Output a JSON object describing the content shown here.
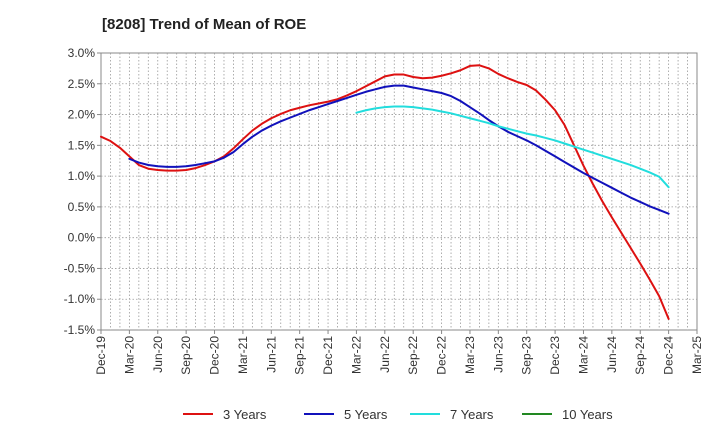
{
  "chart_data": {
    "type": "line",
    "title": "[8208]  Trend of Mean of ROE",
    "xlabel": "",
    "ylabel": "",
    "x_ticks": [
      "Dec-19",
      "Mar-20",
      "Jun-20",
      "Sep-20",
      "Dec-20",
      "Mar-21",
      "Jun-21",
      "Sep-21",
      "Dec-21",
      "Mar-22",
      "Jun-22",
      "Sep-22",
      "Dec-22",
      "Mar-23",
      "Jun-23",
      "Sep-23",
      "Dec-23",
      "Mar-24",
      "Jun-24",
      "Sep-24",
      "Dec-24",
      "Mar-25"
    ],
    "y_ticks": [
      "3.0%",
      "2.5%",
      "2.0%",
      "1.5%",
      "1.0%",
      "0.5%",
      "0.0%",
      "-0.5%",
      "-1.0%",
      "-1.5%"
    ],
    "ylim": [
      -1.5,
      3.0
    ],
    "grid": true,
    "legend_position": "bottom",
    "series": [
      {
        "name": "3 Years",
        "color": "#dd1111",
        "points": [
          [
            "Dec-19",
            1.64
          ],
          [
            "Jan-20",
            1.57
          ],
          [
            "Feb-20",
            1.46
          ],
          [
            "Mar-20",
            1.32
          ],
          [
            "Apr-20",
            1.18
          ],
          [
            "May-20",
            1.12
          ],
          [
            "Jun-20",
            1.1
          ],
          [
            "Jul-20",
            1.09
          ],
          [
            "Aug-20",
            1.09
          ],
          [
            "Sep-20",
            1.1
          ],
          [
            "Oct-20",
            1.13
          ],
          [
            "Nov-20",
            1.18
          ],
          [
            "Dec-20",
            1.24
          ],
          [
            "Jan-21",
            1.32
          ],
          [
            "Feb-21",
            1.45
          ],
          [
            "Mar-21",
            1.6
          ],
          [
            "Apr-21",
            1.74
          ],
          [
            "May-21",
            1.85
          ],
          [
            "Jun-21",
            1.94
          ],
          [
            "Jul-21",
            2.01
          ],
          [
            "Aug-21",
            2.07
          ],
          [
            "Sep-21",
            2.11
          ],
          [
            "Oct-21",
            2.15
          ],
          [
            "Nov-21",
            2.18
          ],
          [
            "Dec-21",
            2.21
          ],
          [
            "Jan-22",
            2.25
          ],
          [
            "Feb-22",
            2.31
          ],
          [
            "Mar-22",
            2.38
          ],
          [
            "Apr-22",
            2.46
          ],
          [
            "May-22",
            2.54
          ],
          [
            "Jun-22",
            2.62
          ],
          [
            "Jul-22",
            2.65
          ],
          [
            "Aug-22",
            2.65
          ],
          [
            "Sep-22",
            2.61
          ],
          [
            "Oct-22",
            2.59
          ],
          [
            "Nov-22",
            2.6
          ],
          [
            "Dec-22",
            2.63
          ],
          [
            "Jan-23",
            2.67
          ],
          [
            "Feb-23",
            2.72
          ],
          [
            "Mar-23",
            2.79
          ],
          [
            "Apr-23",
            2.8
          ],
          [
            "May-23",
            2.75
          ],
          [
            "Jun-23",
            2.66
          ],
          [
            "Jul-23",
            2.59
          ],
          [
            "Aug-23",
            2.53
          ],
          [
            "Sep-23",
            2.48
          ],
          [
            "Oct-23",
            2.39
          ],
          [
            "Nov-23",
            2.24
          ],
          [
            "Dec-23",
            2.07
          ],
          [
            "Jan-24",
            1.83
          ],
          [
            "Feb-24",
            1.5
          ],
          [
            "Mar-24",
            1.17
          ],
          [
            "Apr-24",
            0.87
          ],
          [
            "May-24",
            0.59
          ],
          [
            "Jun-24",
            0.33
          ],
          [
            "Jul-24",
            0.08
          ],
          [
            "Aug-24",
            -0.17
          ],
          [
            "Sep-24",
            -0.42
          ],
          [
            "Oct-24",
            -0.68
          ],
          [
            "Nov-24",
            -0.95
          ],
          [
            "Dec-24",
            -1.32
          ]
        ]
      },
      {
        "name": "5 Years",
        "color": "#1111bb",
        "points": [
          [
            "Mar-20",
            1.28
          ],
          [
            "Apr-20",
            1.22
          ],
          [
            "May-20",
            1.18
          ],
          [
            "Jun-20",
            1.16
          ],
          [
            "Jul-20",
            1.15
          ],
          [
            "Aug-20",
            1.15
          ],
          [
            "Sep-20",
            1.16
          ],
          [
            "Oct-20",
            1.18
          ],
          [
            "Nov-20",
            1.21
          ],
          [
            "Dec-20",
            1.24
          ],
          [
            "Jan-21",
            1.3
          ],
          [
            "Feb-21",
            1.39
          ],
          [
            "Mar-21",
            1.52
          ],
          [
            "Apr-21",
            1.64
          ],
          [
            "May-21",
            1.74
          ],
          [
            "Jun-21",
            1.82
          ],
          [
            "Jul-21",
            1.89
          ],
          [
            "Aug-21",
            1.95
          ],
          [
            "Sep-21",
            2.01
          ],
          [
            "Oct-21",
            2.07
          ],
          [
            "Nov-21",
            2.12
          ],
          [
            "Dec-21",
            2.17
          ],
          [
            "Jan-22",
            2.22
          ],
          [
            "Feb-22",
            2.27
          ],
          [
            "Mar-22",
            2.32
          ],
          [
            "Apr-22",
            2.37
          ],
          [
            "May-22",
            2.41
          ],
          [
            "Jun-22",
            2.45
          ],
          [
            "Jul-22",
            2.47
          ],
          [
            "Aug-22",
            2.47
          ],
          [
            "Sep-22",
            2.44
          ],
          [
            "Oct-22",
            2.41
          ],
          [
            "Nov-22",
            2.38
          ],
          [
            "Dec-22",
            2.35
          ],
          [
            "Jan-23",
            2.3
          ],
          [
            "Feb-23",
            2.22
          ],
          [
            "Mar-23",
            2.12
          ],
          [
            "Apr-23",
            2.02
          ],
          [
            "May-23",
            1.91
          ],
          [
            "Jun-23",
            1.81
          ],
          [
            "Jul-23",
            1.72
          ],
          [
            "Aug-23",
            1.65
          ],
          [
            "Sep-23",
            1.58
          ],
          [
            "Oct-23",
            1.5
          ],
          [
            "Nov-23",
            1.41
          ],
          [
            "Dec-23",
            1.32
          ],
          [
            "Jan-24",
            1.23
          ],
          [
            "Feb-24",
            1.14
          ],
          [
            "Mar-24",
            1.05
          ],
          [
            "Apr-24",
            0.97
          ],
          [
            "May-24",
            0.89
          ],
          [
            "Jun-24",
            0.81
          ],
          [
            "Jul-24",
            0.73
          ],
          [
            "Aug-24",
            0.65
          ],
          [
            "Sep-24",
            0.58
          ],
          [
            "Oct-24",
            0.51
          ],
          [
            "Nov-24",
            0.45
          ],
          [
            "Dec-24",
            0.39
          ]
        ]
      },
      {
        "name": "7 Years",
        "color": "#22dddd",
        "points": [
          [
            "Mar-22",
            2.03
          ],
          [
            "Apr-22",
            2.07
          ],
          [
            "May-22",
            2.1
          ],
          [
            "Jun-22",
            2.12
          ],
          [
            "Jul-22",
            2.13
          ],
          [
            "Aug-22",
            2.13
          ],
          [
            "Sep-22",
            2.12
          ],
          [
            "Oct-22",
            2.1
          ],
          [
            "Nov-22",
            2.08
          ],
          [
            "Dec-22",
            2.05
          ],
          [
            "Jan-23",
            2.02
          ],
          [
            "Feb-23",
            1.98
          ],
          [
            "Mar-23",
            1.94
          ],
          [
            "Apr-23",
            1.9
          ],
          [
            "May-23",
            1.86
          ],
          [
            "Jun-23",
            1.81
          ],
          [
            "Jul-23",
            1.77
          ],
          [
            "Aug-23",
            1.73
          ],
          [
            "Sep-23",
            1.69
          ],
          [
            "Oct-23",
            1.66
          ],
          [
            "Nov-23",
            1.62
          ],
          [
            "Dec-23",
            1.58
          ],
          [
            "Jan-24",
            1.53
          ],
          [
            "Feb-24",
            1.48
          ],
          [
            "Mar-24",
            1.43
          ],
          [
            "Apr-24",
            1.38
          ],
          [
            "May-24",
            1.33
          ],
          [
            "Jun-24",
            1.28
          ],
          [
            "Jul-24",
            1.23
          ],
          [
            "Aug-24",
            1.18
          ],
          [
            "Sep-24",
            1.12
          ],
          [
            "Oct-24",
            1.06
          ],
          [
            "Nov-24",
            0.99
          ],
          [
            "Dec-24",
            0.82
          ]
        ]
      },
      {
        "name": "10 Years",
        "color": "#228822",
        "points": []
      }
    ]
  }
}
